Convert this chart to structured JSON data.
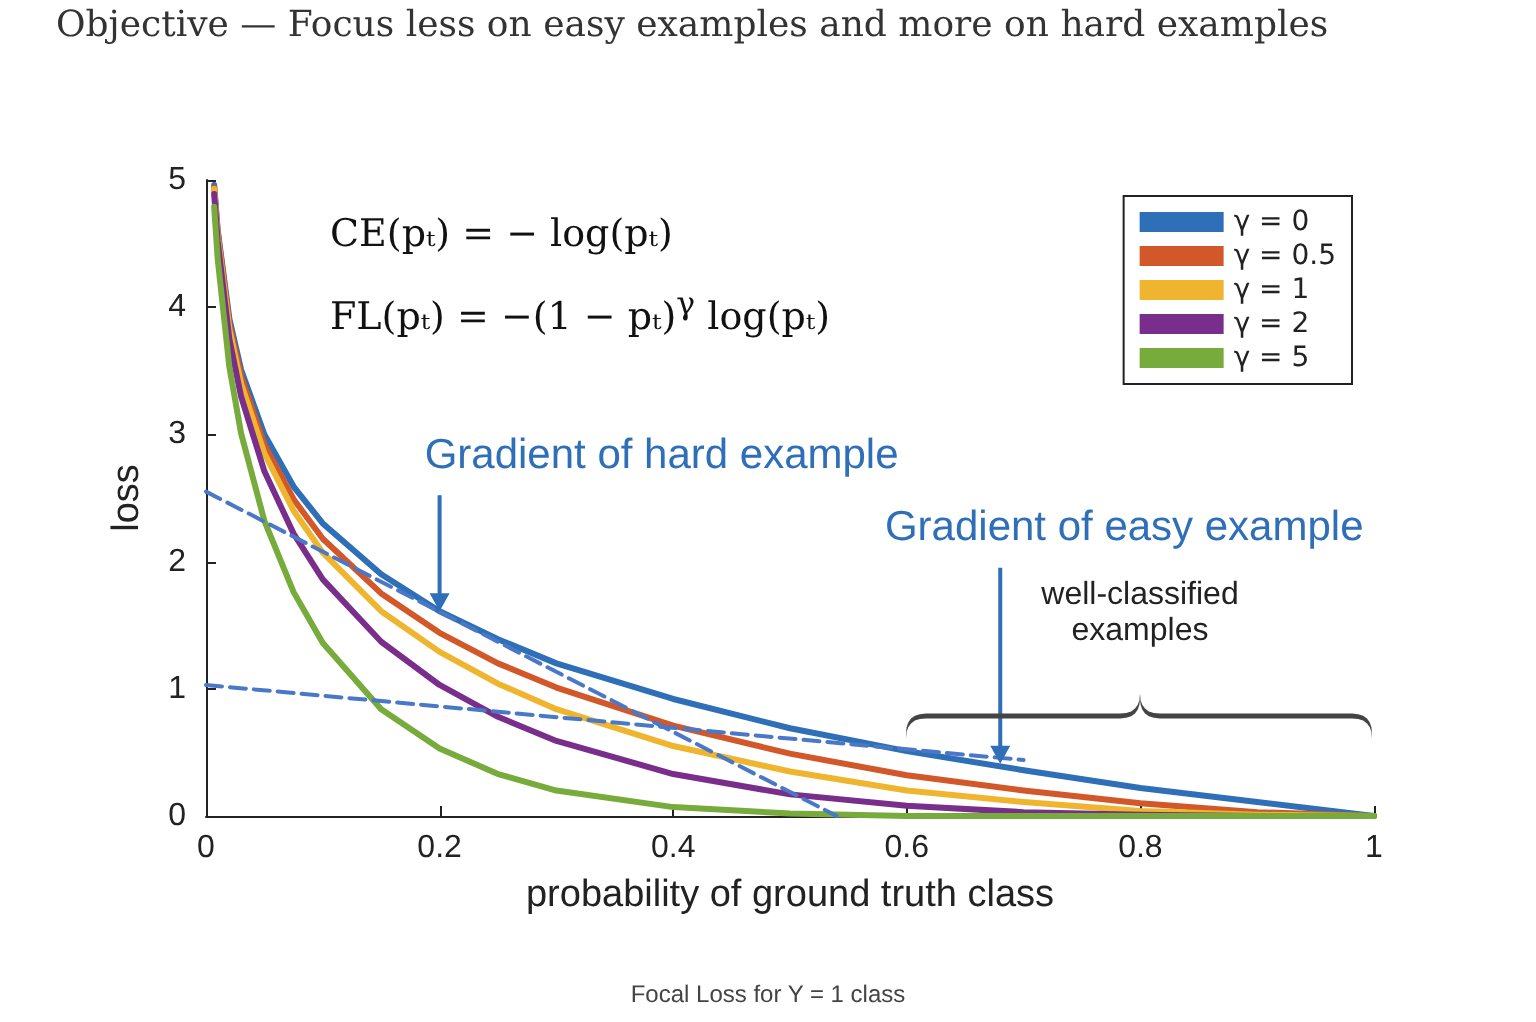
{
  "chart_data": {
    "type": "line",
    "title": "Objective — Focus less on easy examples and more on hard examples",
    "xlabel": "probability of ground truth class",
    "ylabel": "loss",
    "x": [
      0.007,
      0.01,
      0.02,
      0.03,
      0.05,
      0.075,
      0.1,
      0.15,
      0.2,
      0.25,
      0.3,
      0.4,
      0.5,
      0.6,
      0.7,
      0.8,
      0.9,
      1.0
    ],
    "series": [
      {
        "name": "γ = 0",
        "color": "#2e6fb7",
        "values": [
          4.96,
          4.61,
          3.91,
          3.51,
          3.0,
          2.59,
          2.3,
          1.9,
          1.61,
          1.39,
          1.2,
          0.92,
          0.69,
          0.51,
          0.36,
          0.22,
          0.11,
          0
        ]
      },
      {
        "name": "γ = 0.5",
        "color": "#d2582a",
        "values": [
          4.94,
          4.59,
          3.87,
          3.46,
          2.92,
          2.49,
          2.18,
          1.75,
          1.44,
          1.2,
          1.01,
          0.71,
          0.49,
          0.32,
          0.2,
          0.1,
          0.03,
          0
        ]
      },
      {
        "name": "γ = 1",
        "color": "#efb52f",
        "values": [
          4.93,
          4.56,
          3.83,
          3.4,
          2.85,
          2.4,
          2.07,
          1.61,
          1.29,
          1.04,
          0.84,
          0.55,
          0.35,
          0.2,
          0.11,
          0.04,
          0.01,
          0
        ]
      },
      {
        "name": "γ = 2",
        "color": "#7a2e8c",
        "values": [
          4.89,
          4.52,
          3.75,
          3.3,
          2.71,
          2.22,
          1.86,
          1.37,
          1.03,
          0.78,
          0.59,
          0.33,
          0.17,
          0.08,
          0.03,
          0.01,
          0,
          0
        ]
      },
      {
        "name": "γ = 5",
        "color": "#77ab3b",
        "values": [
          4.79,
          4.38,
          3.53,
          3.01,
          2.32,
          1.76,
          1.36,
          0.84,
          0.53,
          0.33,
          0.2,
          0.07,
          0.02,
          0,
          0,
          0,
          0,
          0
        ]
      },
      {
        "color": "#4a78c8",
        "x": [
          0,
          0.54
        ],
        "values": [
          2.55,
          0
        ],
        "line_style": "dashed"
      },
      {
        "color": "#4a78c8",
        "x": [
          0,
          0.7
        ],
        "values": [
          1.03,
          0.44
        ],
        "line_style": "dashed"
      }
    ],
    "xlim": [
      0,
      1
    ],
    "xticks": [
      0,
      0.2,
      0.4,
      0.6,
      0.8,
      1
    ],
    "ylim": [
      0,
      5
    ],
    "yticks": [
      0,
      1,
      2,
      3,
      4,
      5
    ],
    "grid": false,
    "legend": "top right",
    "marker": "none",
    "line_style": "solid",
    "annotations": [
      "CE(pₜ) = − log(pₜ)",
      "FL(pₜ) = −(1 − pₜ)$^{γ}$ log(pₜ)",
      {
        "text": "Gradient of hard example",
        "x": 0.2,
        "y": 1.61
      },
      {
        "text": "Gradient of easy example",
        "x": 0.68,
        "y": 0.41
      },
      "well-classified examples",
      "Focal Loss for Y = 1 class"
    ]
  }
}
